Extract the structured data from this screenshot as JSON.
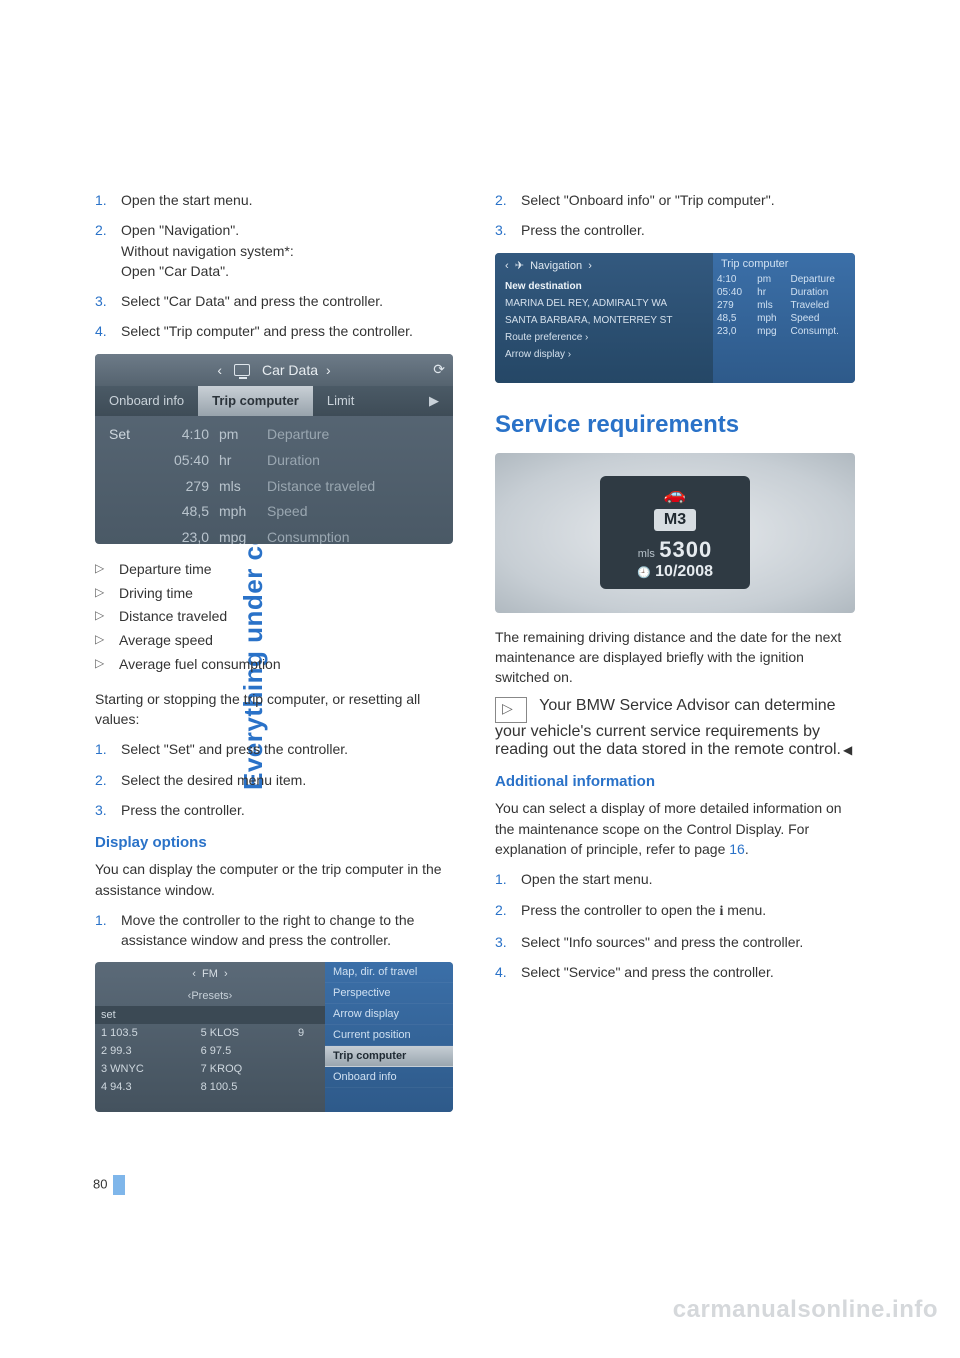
{
  "sidebar_title": "Everything under control",
  "page_number": "80",
  "watermark": "carmanualsonline.info",
  "left": {
    "steps1": [
      {
        "n": "1.",
        "text": "Open the start menu."
      },
      {
        "n": "2.",
        "text": "Open \"Navigation\".\nWithout navigation system*:\nOpen \"Car Data\"."
      },
      {
        "n": "3.",
        "text": "Select \"Car Data\" and press the controller."
      },
      {
        "n": "4.",
        "text": "Select \"Trip computer\" and press the controller."
      }
    ],
    "shot1": {
      "header": "Car Data",
      "tabs": [
        "Onboard info",
        "Trip computer",
        "Limit"
      ],
      "active_tab": 1,
      "set_label": "Set",
      "rows": [
        {
          "v": "4:10",
          "u": "pm",
          "l": "Departure"
        },
        {
          "v": "05:40",
          "u": "hr",
          "l": "Duration"
        },
        {
          "v": "279",
          "u": "mls",
          "l": "Distance traveled"
        },
        {
          "v": "48,5",
          "u": "mph",
          "l": "Speed"
        },
        {
          "v": "23,0",
          "u": "mpg",
          "l": "Consumption"
        }
      ]
    },
    "bullets": [
      "Departure time",
      "Driving time",
      "Distance traveled",
      "Average speed",
      "Average fuel consumption"
    ],
    "para_reset": "Starting or stopping the trip computer, or resetting all values:",
    "steps2": [
      {
        "n": "1.",
        "text": "Select \"Set\" and press the controller."
      },
      {
        "n": "2.",
        "text": "Select the desired menu item."
      },
      {
        "n": "3.",
        "text": "Press the controller."
      }
    ],
    "h_display": "Display options",
    "para_display": "You can display the computer or the trip computer in the assistance window.",
    "steps3": [
      {
        "n": "1.",
        "text": "Move the controller to the right to change to the assistance window and press the controller."
      }
    ],
    "shot2": {
      "hdr": "FM",
      "sub": "Presets",
      "set": "set",
      "presets": [
        [
          "1 103.5",
          "5 KLOS",
          "9"
        ],
        [
          "2 99.3",
          "6 97.5",
          ""
        ],
        [
          "3 WNYC",
          "7 KROQ",
          ""
        ],
        [
          "4 94.3",
          "8 100.5",
          ""
        ]
      ],
      "right_items": [
        "Map, dir. of travel",
        "Perspective",
        "Arrow display",
        "Current position",
        "Trip computer",
        "Onboard info"
      ],
      "right_hl": 4
    }
  },
  "right": {
    "steps4": [
      {
        "n": "2.",
        "text": "Select \"Onboard info\" or \"Trip computer\"."
      },
      {
        "n": "3.",
        "text": "Press the controller."
      }
    ],
    "shot3": {
      "left_hdr": "Navigation",
      "left_rows": [
        {
          "t": "New destination",
          "bold": true
        },
        {
          "t": "MARINA DEL REY, ADMIRALTY WA"
        },
        {
          "t": "SANTA BARBARA, MONTERREY ST"
        },
        {
          "t": "Route preference ›"
        },
        {
          "t": "Arrow display ›"
        }
      ],
      "right_title": "Trip computer",
      "right_rows": [
        [
          "4:10",
          "pm",
          "Departure"
        ],
        [
          "05:40",
          "hr",
          "Duration"
        ],
        [
          "279",
          "mls",
          "Traveled"
        ],
        [
          "48,5",
          "mph",
          "Speed"
        ],
        [
          "23,0",
          "mpg",
          "Consumpt."
        ]
      ]
    },
    "h_section": "Service requirements",
    "shot4": {
      "badge": "M3",
      "unit": "mls",
      "value": "5300",
      "date": "10/2008"
    },
    "para_remaining": "The remaining driving distance and the date for the next maintenance are displayed briefly with the ignition switched on.",
    "info_para": "Your BMW Service Advisor can determine your vehicle's current service requirements by reading out the data stored in the remote control.",
    "h_additional": "Additional information",
    "para_additional_a": "You can select a display of more detailed information on the maintenance scope on the Control Display. For explanation of principle, refer to page ",
    "para_additional_link": "16",
    "para_additional_b": ".",
    "steps5": [
      {
        "n": "1.",
        "text": "Open the start menu."
      },
      {
        "n": "2.",
        "text_a": "Press the controller to open the ",
        "text_b": " menu.",
        "icon": "i"
      },
      {
        "n": "3.",
        "text": "Select \"Info sources\" and press the controller."
      },
      {
        "n": "4.",
        "text": "Select \"Service\" and press the controller."
      }
    ]
  }
}
